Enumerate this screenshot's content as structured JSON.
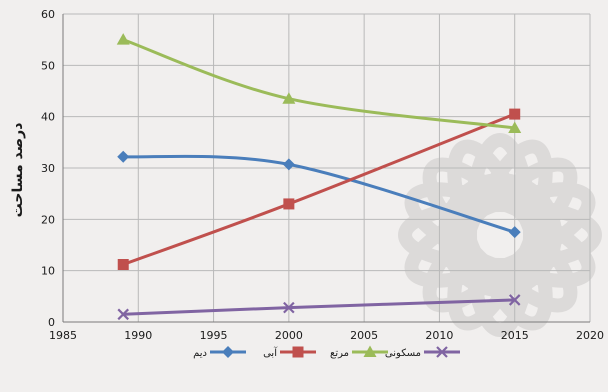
{
  "chart_data": {
    "type": "line",
    "ylabel": "درصد مساحت",
    "xlim": [
      1985,
      2020
    ],
    "ylim": [
      0,
      60
    ],
    "x_ticks": [
      1985,
      1990,
      1995,
      2000,
      2005,
      2010,
      2015,
      2020
    ],
    "y_ticks": [
      0,
      10,
      20,
      30,
      40,
      50,
      60
    ],
    "grid": true,
    "legend_position": "bottom",
    "series": [
      {
        "name": "دیم",
        "color": "#4a7ebb",
        "marker": "diamond",
        "x": [
          1989,
          2000,
          2015
        ],
        "values": [
          32.2,
          30.7,
          17.5
        ]
      },
      {
        "name": "آبی",
        "color": "#c0504d",
        "marker": "square",
        "x": [
          1989,
          2000,
          2015
        ],
        "values": [
          11.2,
          23.0,
          40.5
        ]
      },
      {
        "name": "مرتع",
        "color": "#9bbb59",
        "marker": "triangle",
        "x": [
          1989,
          2000,
          2015
        ],
        "values": [
          55.0,
          43.5,
          37.8
        ]
      },
      {
        "name": "مسکونی",
        "color": "#8064a2",
        "marker": "x",
        "x": [
          1989,
          2000,
          2015
        ],
        "values": [
          1.5,
          2.8,
          4.3
        ]
      }
    ]
  }
}
